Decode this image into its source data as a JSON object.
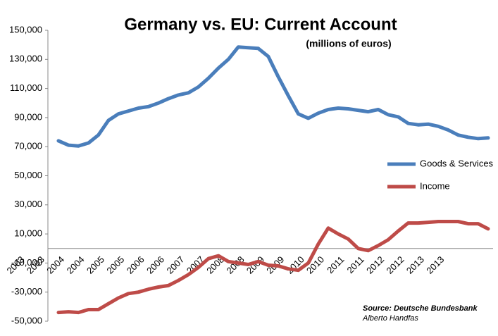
{
  "chart_data": {
    "type": "line",
    "title": "Germany vs. EU: Current Account",
    "subtitle": "(millions of euros)",
    "source": "Source: Deutsche Bundesbank",
    "author": "Alberto Handfas",
    "categories": [
      "2003",
      null,
      "2003",
      null,
      "2004",
      null,
      "2004",
      null,
      "2005",
      null,
      "2005",
      null,
      "2006",
      null,
      "2006",
      null,
      "2007",
      null,
      "2007",
      null,
      "2008",
      null,
      "2008",
      null,
      "2009",
      null,
      "2009",
      null,
      "2010",
      null,
      "2010",
      null,
      "2011",
      null,
      "2011",
      null,
      "2012",
      null,
      "2012",
      null,
      "2013",
      null,
      "2013",
      null
    ],
    "series": [
      {
        "name": "Goods & Services",
        "color": "#4a7ebb",
        "values": [
          74000,
          71000,
          70500,
          72500,
          78000,
          88000,
          92500,
          94500,
          96500,
          97500,
          100000,
          103000,
          105500,
          107000,
          111000,
          117000,
          124000,
          130000,
          138500,
          138000,
          137500,
          132000,
          118000,
          105000,
          92500,
          89500,
          93000,
          95500,
          96500,
          96000,
          95000,
          94000,
          95500,
          92000,
          90500,
          86000,
          85000,
          85500,
          84000,
          81500,
          78000,
          76500,
          75500,
          76000
        ]
      },
      {
        "name": "Income",
        "color": "#be4b48",
        "values": [
          -44000,
          -43500,
          -44000,
          -42000,
          -42000,
          -38000,
          -34000,
          -31000,
          -30000,
          -28000,
          -26500,
          -25500,
          -22000,
          -18000,
          -13000,
          -7000,
          -5000,
          -9000,
          -10000,
          -11000,
          -9000,
          -11500,
          -12000,
          -14000,
          -15000,
          -10000,
          3000,
          14000,
          10000,
          6500,
          0,
          -1500,
          2000,
          6000,
          12000,
          17500,
          17500,
          18000,
          18500,
          18500,
          18500,
          17000,
          17000,
          13500
        ]
      }
    ],
    "ylim": [
      -50000,
      150000
    ],
    "yticks": [
      {
        "value": -50000,
        "label": "-50,000"
      },
      {
        "value": -30000,
        "label": "-30,000"
      },
      {
        "value": -10000,
        "label": "-10,000"
      },
      {
        "value": 10000,
        "label": "10,000"
      },
      {
        "value": 30000,
        "label": "30,000"
      },
      {
        "value": 50000,
        "label": "50,000"
      },
      {
        "value": 70000,
        "label": "70,000"
      },
      {
        "value": 90000,
        "label": "90,000"
      },
      {
        "value": 110000,
        "label": "110,000"
      },
      {
        "value": 130000,
        "label": "130,000"
      },
      {
        "value": 150000,
        "label": "150,000"
      }
    ],
    "legend": "right",
    "grid": false
  }
}
